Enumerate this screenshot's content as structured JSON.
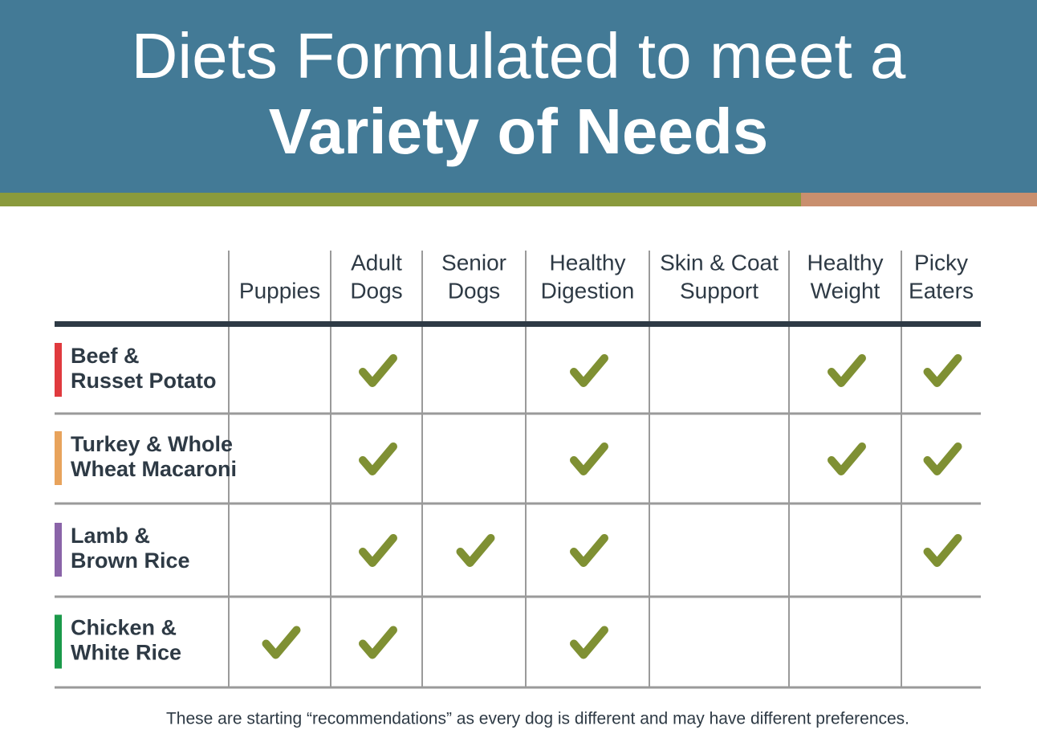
{
  "header": {
    "title_lines": [
      "Diets Formulated to meet a",
      "Variety of Needs"
    ]
  },
  "table": {
    "columns": [
      [
        "Puppies"
      ],
      [
        "Adult",
        "Dogs"
      ],
      [
        "Senior",
        "Dogs"
      ],
      [
        "Healthy",
        "Digestion"
      ],
      [
        "Skin & Coat",
        "Support"
      ],
      [
        "Healthy",
        "Weight"
      ],
      [
        "Picky",
        "Eaters"
      ]
    ],
    "rows": [
      {
        "name": [
          "Beef &",
          "Russet Potato"
        ],
        "color": "#e03a3e",
        "checks": [
          false,
          true,
          false,
          true,
          false,
          true,
          true
        ]
      },
      {
        "name": [
          "Turkey & Whole",
          "Wheat Macaroni"
        ],
        "color": "#e8a35c",
        "checks": [
          false,
          true,
          false,
          true,
          false,
          true,
          true
        ]
      },
      {
        "name": [
          "Lamb &",
          "Brown Rice"
        ],
        "color": "#8a64a8",
        "checks": [
          false,
          true,
          true,
          true,
          false,
          false,
          true
        ]
      },
      {
        "name": [
          "Chicken &",
          "White Rice"
        ],
        "color": "#1b9a4a",
        "checks": [
          true,
          true,
          false,
          true,
          false,
          false,
          false
        ]
      }
    ],
    "check_color": "#7f9033"
  },
  "footnote": "These are starting “recommendations” as every dog is different and may have different preferences."
}
